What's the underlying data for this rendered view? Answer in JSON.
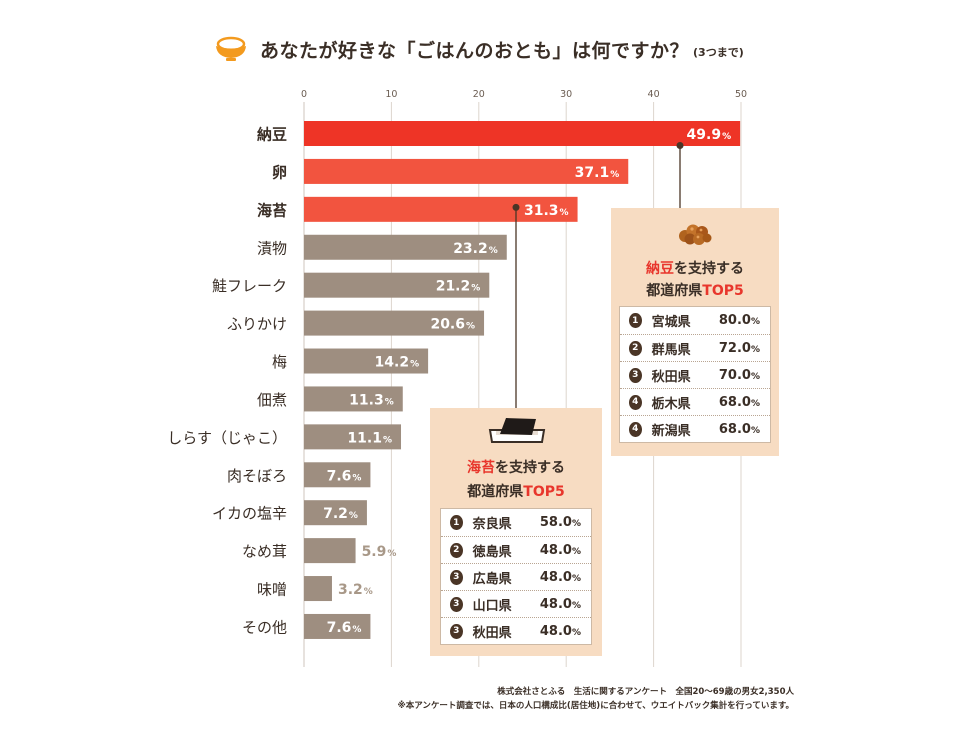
{
  "title": {
    "main": "あなたが好きな「ごはんのおとも」は何ですか？",
    "sub": "(3つまで)"
  },
  "colors": {
    "top_bar": "#ee3426",
    "second_bar": "#f2543f",
    "other_bar": "#9e8e80",
    "label_dark": "#3a2e26",
    "popup_bg": "#f7dcc2",
    "accent": "#e8362c"
  },
  "chart_data": {
    "type": "bar",
    "orientation": "horizontal",
    "categories": [
      "納豆",
      "卵",
      "海苔",
      "漬物",
      "鮭フレーク",
      "ふりかけ",
      "梅",
      "佃煮",
      "しらす（じゃこ）",
      "肉そぼろ",
      "イカの塩辛",
      "なめ茸",
      "味噌",
      "その他"
    ],
    "values": [
      49.9,
      37.1,
      31.3,
      23.2,
      21.2,
      20.6,
      14.2,
      11.3,
      11.1,
      7.6,
      7.2,
      5.9,
      3.2,
      7.6
    ],
    "value_suffix": "%",
    "xlim": [
      0,
      50
    ],
    "xticks": [
      0,
      10,
      20,
      30,
      40,
      50
    ],
    "grid": true,
    "highlighted_top": 3
  },
  "natto_box": {
    "title_highlight": "納豆",
    "title_rest": "を支持する",
    "title_line2_prefix": "都道府県",
    "title_line2_highlight": "TOP5",
    "icon": "natto-icon",
    "rows": [
      {
        "rank": "1",
        "pref": "宮城県",
        "value": "80.0",
        "unit": "%"
      },
      {
        "rank": "2",
        "pref": "群馬県",
        "value": "72.0",
        "unit": "%"
      },
      {
        "rank": "3",
        "pref": "秋田県",
        "value": "70.0",
        "unit": "%"
      },
      {
        "rank": "4",
        "pref": "栃木県",
        "value": "68.0",
        "unit": "%"
      },
      {
        "rank": "4",
        "pref": "新潟県",
        "value": "68.0",
        "unit": "%"
      }
    ]
  },
  "nori_box": {
    "title_highlight": "海苔",
    "title_rest": "を支持する",
    "title_line2_prefix": "都道府県",
    "title_line2_highlight": "TOP5",
    "icon": "nori-icon",
    "rows": [
      {
        "rank": "1",
        "pref": "奈良県",
        "value": "58.0",
        "unit": "%"
      },
      {
        "rank": "2",
        "pref": "徳島県",
        "value": "48.0",
        "unit": "%"
      },
      {
        "rank": "3",
        "pref": "広島県",
        "value": "48.0",
        "unit": "%"
      },
      {
        "rank": "3",
        "pref": "山口県",
        "value": "48.0",
        "unit": "%"
      },
      {
        "rank": "3",
        "pref": "秋田県",
        "value": "48.0",
        "unit": "%"
      }
    ]
  },
  "footer": {
    "line1": "株式会社さとふる　生活に関するアンケート　全国20～69歳の男女2,350人",
    "line2": "※本アンケート調査では、日本の人口構成比(居住地)に合わせて、ウエイトバック集計を行っています。"
  }
}
